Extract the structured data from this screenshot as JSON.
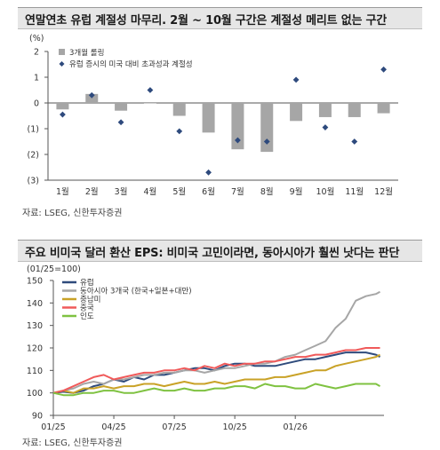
{
  "chart1": {
    "title": "연말연초 유럽 계절성 마무리. 2월 ~ 10월 구간은 계절성 메리트 없는 구간",
    "unit": "(%)",
    "source": "자료: LSEG, 신한투자증권",
    "chart_data": {
      "type": "bar",
      "title": "연말연초 유럽 계절성 마무리. 2월 ~ 10월 구간은 계절성 메리트 없는 구간",
      "categories": [
        "1월",
        "2월",
        "3월",
        "4월",
        "5월",
        "6월",
        "7월",
        "8월",
        "9월",
        "10월",
        "11월",
        "12월"
      ],
      "series": [
        {
          "name": "3개월 롤링",
          "type": "bar",
          "color": "#a6a6a6",
          "values": [
            -0.25,
            0.35,
            -0.3,
            0.0,
            -0.5,
            -1.15,
            -1.8,
            -1.9,
            -0.7,
            -0.55,
            -0.55,
            -0.4
          ]
        },
        {
          "name": "유럽 증시의 미국 대비 초과성과 계절성",
          "type": "scatter",
          "color": "#2e4a7d",
          "values": [
            -0.45,
            0.3,
            -0.75,
            0.5,
            -1.1,
            -2.7,
            -1.45,
            -1.5,
            0.9,
            -0.95,
            -1.5,
            1.3
          ]
        }
      ],
      "ylim": [
        -3,
        2
      ],
      "yticks": [
        "2",
        "1",
        "0",
        "(1)",
        "(2)",
        "(3)"
      ],
      "legend": "top-left",
      "grid": false
    }
  },
  "chart2": {
    "title": "주요 비미국 달러 환산 EPS: 비미국 고민이라면, 동아시아가 훨씬 낫다는 판단",
    "unit": "(01/25=100)",
    "source": "자료: LSEG, 신한투자증권",
    "chart_data": {
      "type": "line",
      "title": "주요 비미국 달러 환산 EPS: 비미국 고민이라면, 동아시아가 훨씬 낫다는 판단",
      "x_ticks": [
        "01/25",
        "04/25",
        "07/25",
        "10/25",
        "01/26"
      ],
      "x_tick_months": [
        0,
        3,
        6,
        9,
        12
      ],
      "x_range_months": [
        0,
        16.4
      ],
      "ylim": [
        90,
        150
      ],
      "yticks": [
        90,
        100,
        110,
        120,
        130,
        140,
        150
      ],
      "legend": "top-left",
      "grid": false,
      "series": [
        {
          "name": "유럽",
          "color": "#2f4b7c",
          "x": [
            0,
            0.5,
            1,
            1.5,
            2,
            2.5,
            3,
            3.5,
            4,
            4.5,
            5,
            5.5,
            6,
            6.5,
            7,
            7.5,
            8,
            8.5,
            9,
            9.5,
            10,
            10.5,
            11,
            11.5,
            12,
            12.5,
            13,
            13.5,
            14,
            14.5,
            15,
            15.5,
            16,
            16.2
          ],
          "y": [
            100,
            100.5,
            100,
            101,
            103,
            104,
            106,
            105,
            107,
            106,
            108,
            108,
            109,
            110,
            111,
            111,
            110,
            112,
            113,
            113,
            112,
            112,
            112,
            113,
            114,
            115,
            115,
            116,
            117,
            118,
            118,
            118,
            117,
            116
          ]
        },
        {
          "name": "동아시아 3개국 (한국+일본+대만)",
          "color": "#a6a6a6",
          "x": [
            0,
            0.5,
            1,
            1.5,
            2,
            2.5,
            3,
            3.5,
            4,
            4.5,
            5,
            5.5,
            6,
            6.5,
            7,
            7.5,
            8,
            8.5,
            9,
            9.5,
            10,
            10.5,
            11,
            11.5,
            12,
            12.5,
            13,
            13.5,
            14,
            14.5,
            15,
            15.5,
            16,
            16.2
          ],
          "y": [
            100,
            101,
            102,
            104,
            105,
            104,
            106,
            106,
            107,
            108,
            108,
            109,
            109,
            110,
            110,
            109,
            110,
            111,
            111,
            112,
            113,
            113,
            114,
            116,
            117,
            119,
            121,
            123,
            129,
            133,
            141,
            143,
            144,
            145
          ]
        },
        {
          "name": "중남미",
          "color": "#c9a227",
          "x": [
            0,
            0.5,
            1,
            1.5,
            2,
            2.5,
            3,
            3.5,
            4,
            4.5,
            5,
            5.5,
            6,
            6.5,
            7,
            7.5,
            8,
            8.5,
            9,
            9.5,
            10,
            10.5,
            11,
            11.5,
            12,
            12.5,
            13,
            13.5,
            14,
            14.5,
            15,
            15.5,
            16,
            16.2
          ],
          "y": [
            100,
            101,
            100,
            102,
            102,
            103,
            102,
            103,
            103,
            104,
            104,
            103,
            104,
            105,
            104,
            104,
            105,
            104,
            105,
            106,
            106,
            106,
            107,
            107,
            108,
            109,
            110,
            110,
            112,
            113,
            114,
            115,
            116,
            117
          ]
        },
        {
          "name": "중국",
          "color": "#f05a5a",
          "x": [
            0,
            0.5,
            1,
            1.5,
            2,
            2.5,
            3,
            3.5,
            4,
            4.5,
            5,
            5.5,
            6,
            6.5,
            7,
            7.5,
            8,
            8.5,
            9,
            9.5,
            10,
            10.5,
            11,
            11.5,
            12,
            12.5,
            13,
            13.5,
            14,
            14.5,
            15,
            15.5,
            16,
            16.2
          ],
          "y": [
            100,
            101,
            103,
            105,
            107,
            108,
            106,
            107,
            108,
            109,
            109,
            110,
            110,
            111,
            110,
            112,
            111,
            113,
            112,
            113,
            113,
            114,
            114,
            115,
            116,
            116,
            117,
            117,
            118,
            119,
            119,
            120,
            120,
            120
          ]
        },
        {
          "name": "인도",
          "color": "#7fc241",
          "x": [
            0,
            0.5,
            1,
            1.5,
            2,
            2.5,
            3,
            3.5,
            4,
            4.5,
            5,
            5.5,
            6,
            6.5,
            7,
            7.5,
            8,
            8.5,
            9,
            9.5,
            10,
            10.5,
            11,
            11.5,
            12,
            12.5,
            13,
            13.5,
            14,
            14.5,
            15,
            15.5,
            16,
            16.2
          ],
          "y": [
            100,
            99,
            99,
            100,
            100,
            101,
            101,
            100,
            100,
            101,
            102,
            101,
            101,
            102,
            101,
            101,
            102,
            102,
            103,
            103,
            102,
            104,
            103,
            103,
            102,
            102,
            104,
            103,
            102,
            103,
            104,
            104,
            104,
            103
          ]
        }
      ]
    }
  }
}
